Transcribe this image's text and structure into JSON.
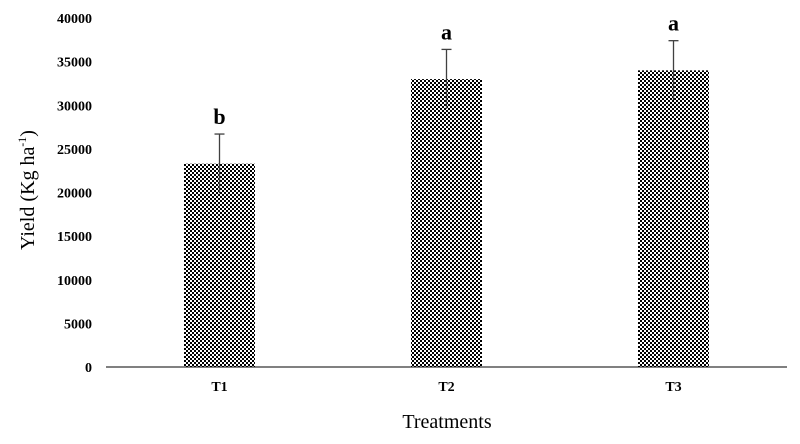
{
  "chart_data": {
    "type": "bar",
    "categories": [
      "T1",
      "T2",
      "T3"
    ],
    "values": [
      23300,
      33000,
      34000
    ],
    "error_plus": [
      3400,
      3400,
      3400
    ],
    "error_minus": [
      3400,
      3400,
      3400
    ],
    "significance_letters": [
      "b",
      "a",
      "a"
    ],
    "ylim": [
      0,
      40000
    ],
    "yticks": [
      0,
      5000,
      10000,
      15000,
      20000,
      25000,
      30000,
      35000,
      40000
    ],
    "xlabel": "Treatments",
    "ylabel": {
      "main": "Yield (Kg ha",
      "superscript": "-1",
      "close": ")"
    },
    "grid": false,
    "legend": "none",
    "bar_fill": "checkerboard",
    "colors": {
      "bar_dark": "#000000",
      "bar_light": "#ffffff",
      "error_bar": "#404040",
      "axis": "#000000"
    }
  }
}
